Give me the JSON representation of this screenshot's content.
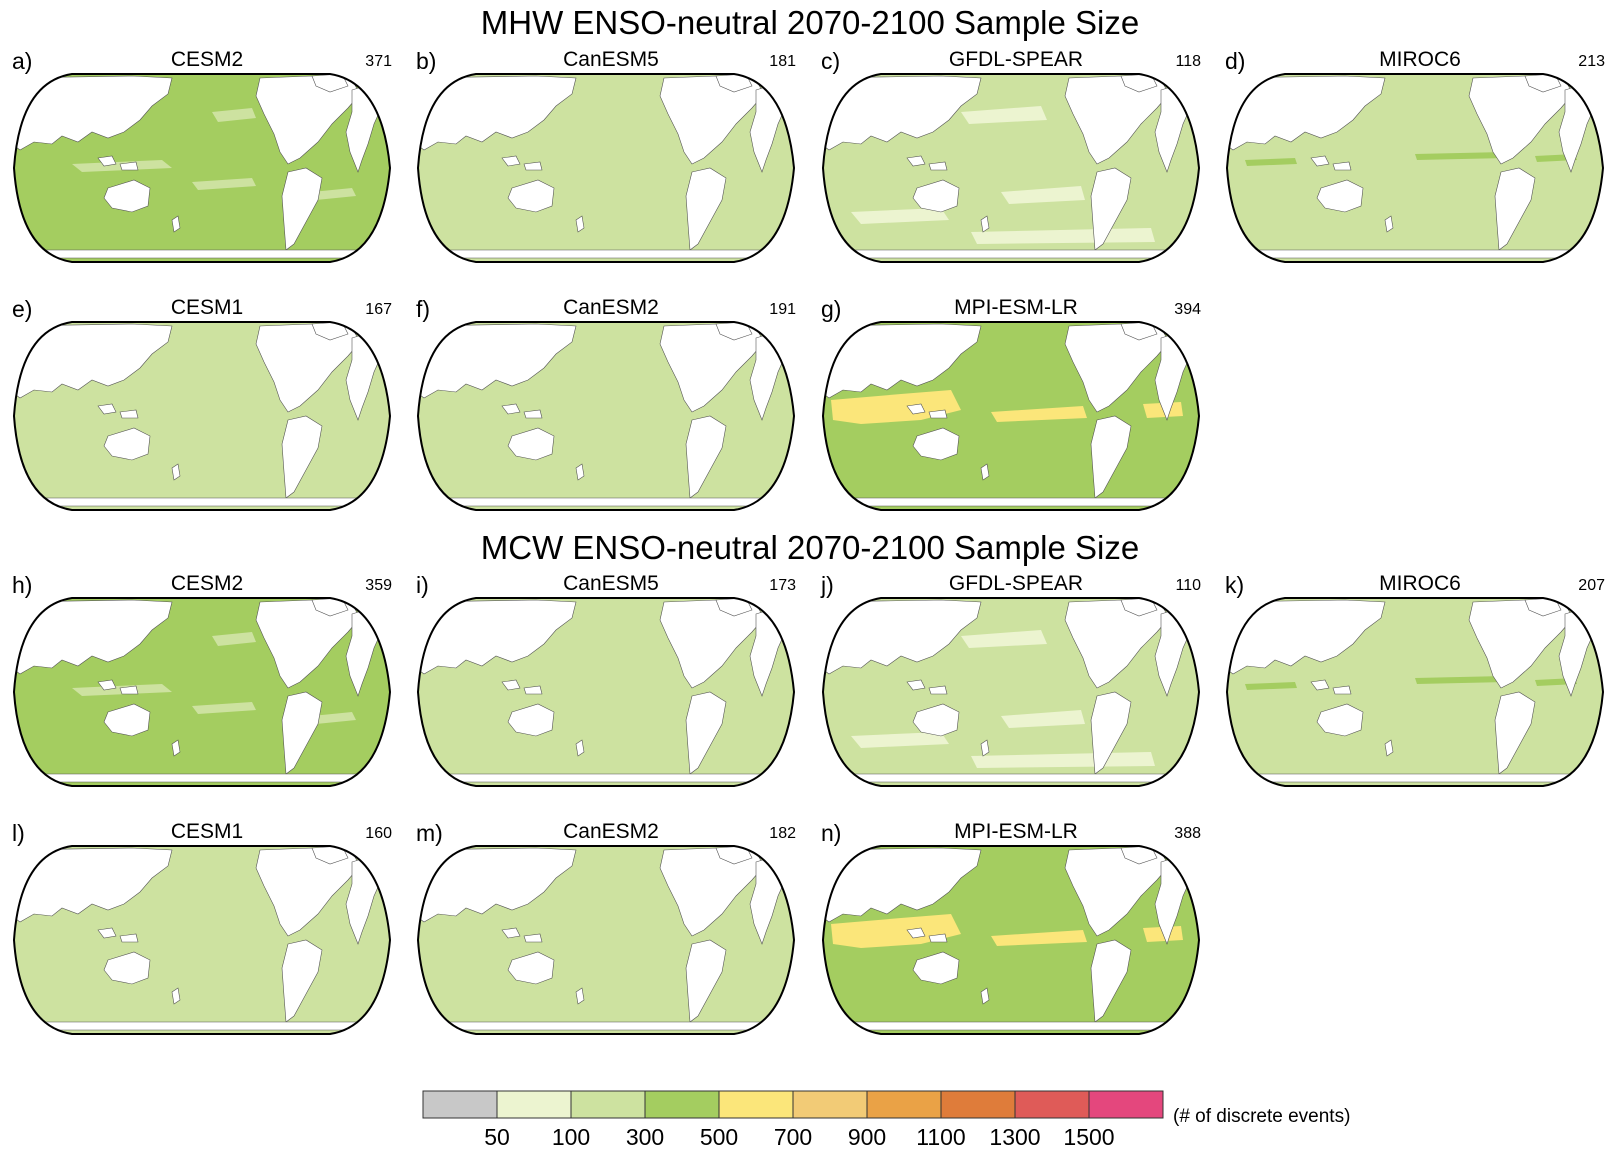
{
  "sections": [
    {
      "title": "MHW ENSO-neutral 2070-2100 Sample Size"
    },
    {
      "title": "MCW ENSO-neutral 2070-2100 Sample Size"
    }
  ],
  "panels": [
    {
      "letter": "a)",
      "model": "CESM2",
      "count": "371",
      "ocean_color": "#a4cd60",
      "bin": "300-500",
      "patches": [
        "bands"
      ]
    },
    {
      "letter": "b)",
      "model": "CanESM5",
      "count": "181",
      "ocean_color": "#cde2a0",
      "bin": "100-300",
      "patches": []
    },
    {
      "letter": "c)",
      "model": "GFDL-SPEAR",
      "count": "118",
      "ocean_color": "#cde2a0",
      "bin": "100-300",
      "patches": [
        "pale"
      ]
    },
    {
      "letter": "d)",
      "model": "MIROC6",
      "count": "213",
      "ocean_color": "#cde2a0",
      "bin": "100-300",
      "patches": [
        "equator"
      ]
    },
    {
      "letter": "e)",
      "model": "CESM1",
      "count": "167",
      "ocean_color": "#cde2a0",
      "bin": "100-300",
      "patches": []
    },
    {
      "letter": "f)",
      "model": "CanESM2",
      "count": "191",
      "ocean_color": "#cde2a0",
      "bin": "100-300",
      "patches": []
    },
    {
      "letter": "g)",
      "model": "MPI-ESM-LR",
      "count": "394",
      "ocean_color": "#a4cd60",
      "bin": "300-500",
      "patches": [
        "yellow"
      ]
    },
    {
      "letter": "h)",
      "model": "CESM2",
      "count": "359",
      "ocean_color": "#a4cd60",
      "bin": "300-500",
      "patches": [
        "bands"
      ]
    },
    {
      "letter": "i)",
      "model": "CanESM5",
      "count": "173",
      "ocean_color": "#cde2a0",
      "bin": "100-300",
      "patches": []
    },
    {
      "letter": "j)",
      "model": "GFDL-SPEAR",
      "count": "110",
      "ocean_color": "#cde2a0",
      "bin": "100-300",
      "patches": [
        "pale"
      ]
    },
    {
      "letter": "k)",
      "model": "MIROC6",
      "count": "207",
      "ocean_color": "#cde2a0",
      "bin": "100-300",
      "patches": [
        "equator"
      ]
    },
    {
      "letter": "l)",
      "model": "CESM1",
      "count": "160",
      "ocean_color": "#cde2a0",
      "bin": "100-300",
      "patches": []
    },
    {
      "letter": "m)",
      "model": "CanESM2",
      "count": "182",
      "ocean_color": "#cde2a0",
      "bin": "100-300",
      "patches": []
    },
    {
      "letter": "n)",
      "model": "MPI-ESM-LR",
      "count": "388",
      "ocean_color": "#a4cd60",
      "bin": "300-500",
      "patches": [
        "yellow"
      ]
    }
  ],
  "colorbar": {
    "colors": [
      "#c8c8c8",
      "#ecf4d0",
      "#cde2a0",
      "#a4cd60",
      "#fbe67a",
      "#f2cb76",
      "#eaa246",
      "#df7c3a",
      "#df5b58",
      "#e4477d"
    ],
    "ticks": [
      "50",
      "100",
      "300",
      "500",
      "700",
      "900",
      "1100",
      "1300",
      "1500"
    ],
    "label": "(# of discrete events)"
  }
}
